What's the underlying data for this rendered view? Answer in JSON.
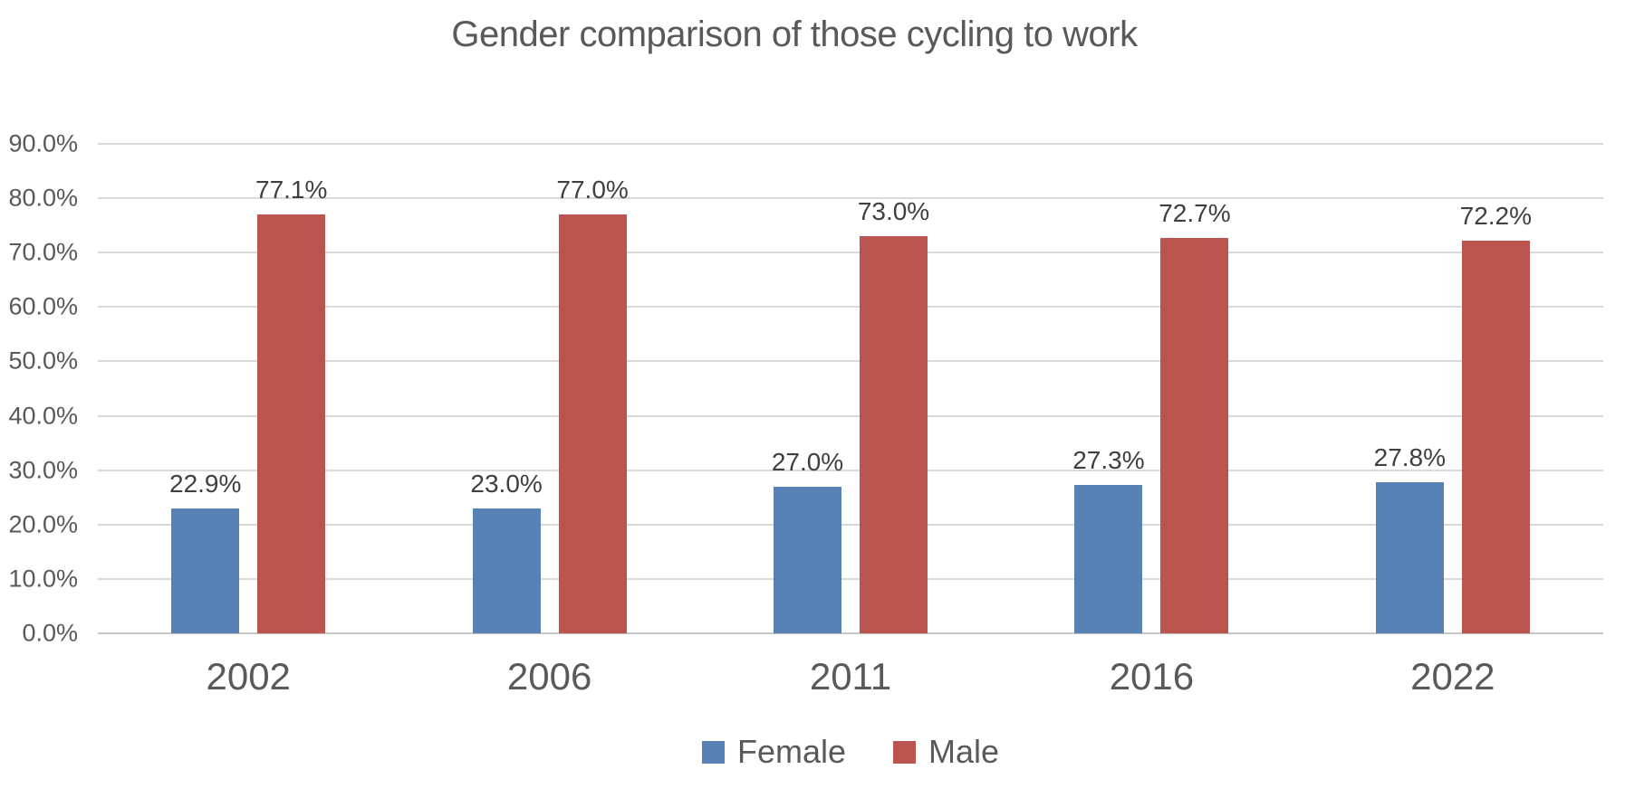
{
  "chart_data": {
    "type": "bar",
    "title": "Gender comparison of those cycling to work",
    "categories": [
      "2002",
      "2006",
      "2011",
      "2016",
      "2022"
    ],
    "series": [
      {
        "name": "Female",
        "color": "#5881B5",
        "values": [
          22.9,
          23.0,
          27.0,
          27.3,
          27.8
        ],
        "labels": [
          "22.9%",
          "23.0%",
          "27.0%",
          "27.3%",
          "27.8%"
        ]
      },
      {
        "name": "Male",
        "color": "#BB544F",
        "values": [
          77.1,
          77.0,
          73.0,
          72.7,
          72.2
        ],
        "labels": [
          "77.1%",
          "77.0%",
          "73.0%",
          "72.7%",
          "72.2%"
        ]
      }
    ],
    "y_axis": {
      "min": 0,
      "max": 90,
      "step": 10,
      "tick_labels": [
        "0.0%",
        "10.0%",
        "20.0%",
        "30.0%",
        "40.0%",
        "50.0%",
        "60.0%",
        "70.0%",
        "80.0%",
        "90.0%"
      ]
    },
    "xlabel": "",
    "ylabel": "",
    "grid": true,
    "legend_position": "bottom",
    "styles": {
      "gridline_color": "#D9D9D9",
      "axis_line_color": "#C6C6C6",
      "title_color": "#595959",
      "axis_text_color": "#595959",
      "data_label_color": "#3F3F3F",
      "background": "#FFFFFF"
    }
  }
}
